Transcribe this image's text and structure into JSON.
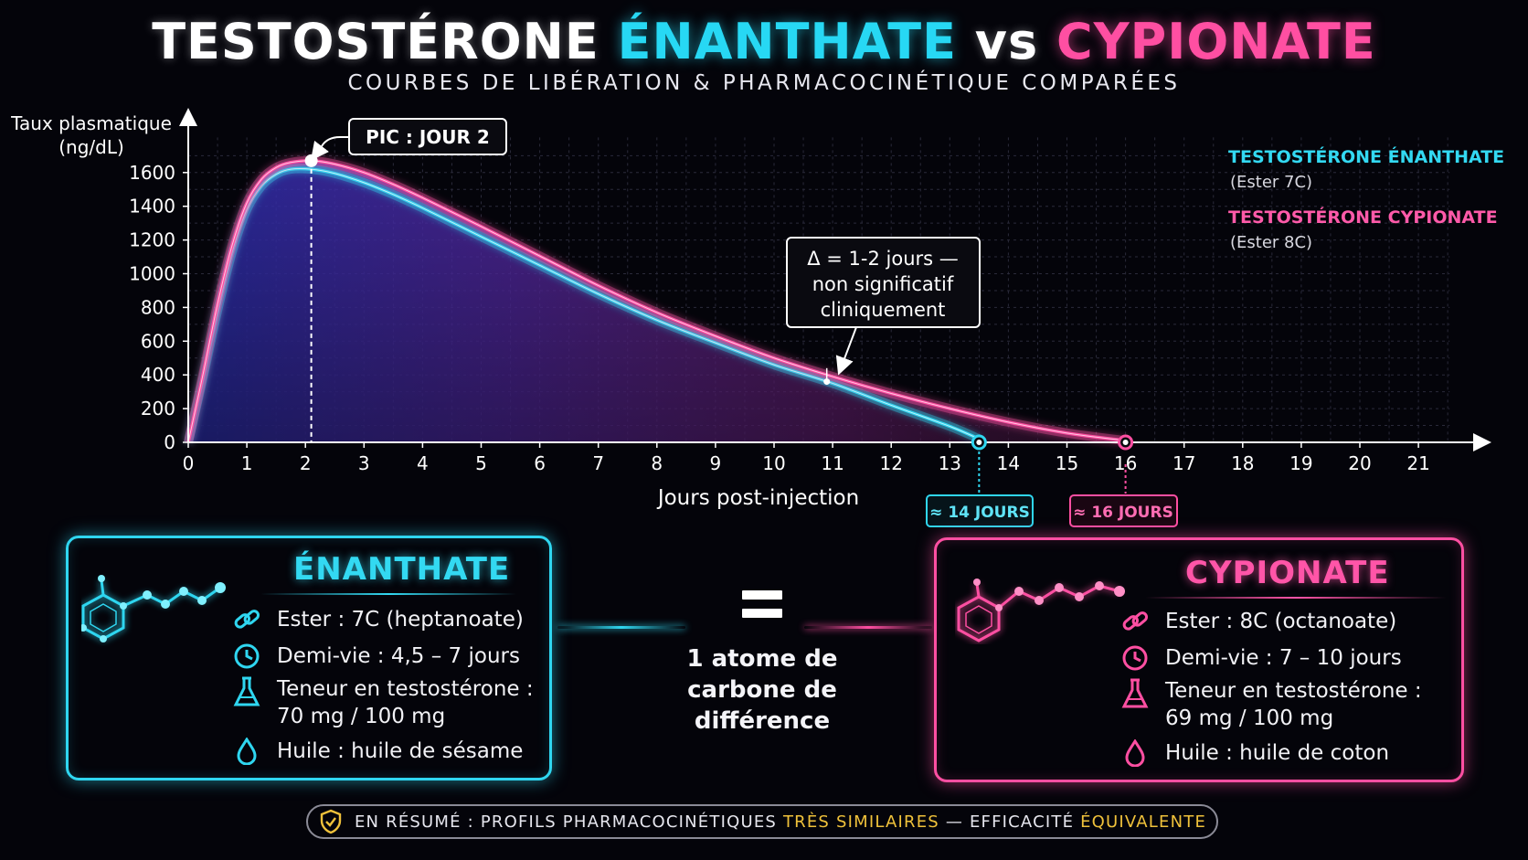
{
  "header": {
    "title_part1": "TESTOSTÉRONE",
    "title_part2": "ÉNANTHATE",
    "title_part3": "vs",
    "title_part4": "CYPIONATE",
    "subtitle": "COURBES DE LIBÉRATION & PHARMACOCINÉTIQUE COMPARÉES"
  },
  "colors": {
    "enanthate": "#2fd6f0",
    "cypionate": "#ff4fa2",
    "highlight": "#f0c23b",
    "background": "#04040a"
  },
  "chart_data": {
    "type": "line",
    "ylabel": [
      "Taux plasmatique",
      "(ng/dL)"
    ],
    "xlabel": "Jours post-injection",
    "xlim": [
      0,
      22
    ],
    "ylim": [
      0,
      1700
    ],
    "xticks": [
      0,
      1,
      2,
      3,
      4,
      5,
      6,
      7,
      8,
      9,
      10,
      11,
      12,
      13,
      14,
      15,
      16,
      17,
      18,
      19,
      20,
      21
    ],
    "yticks": [
      0,
      200,
      400,
      600,
      800,
      1000,
      1200,
      1400,
      1600
    ],
    "grid": true,
    "legend_position": "top-right",
    "series": [
      {
        "name": "TESTOSTÉRONE ÉNANTHATE",
        "sublabel": "(Ester 7C)",
        "color": "#2fd6f0",
        "points": [
          [
            0,
            0
          ],
          [
            0.25,
            380
          ],
          [
            0.5,
            780
          ],
          [
            0.75,
            1130
          ],
          [
            1,
            1380
          ],
          [
            1.25,
            1520
          ],
          [
            1.5,
            1590
          ],
          [
            1.75,
            1620
          ],
          [
            2.1,
            1620
          ],
          [
            2.5,
            1595
          ],
          [
            3,
            1540
          ],
          [
            3.5,
            1470
          ],
          [
            4,
            1390
          ],
          [
            5,
            1220
          ],
          [
            6,
            1050
          ],
          [
            7,
            880
          ],
          [
            8,
            725
          ],
          [
            9,
            590
          ],
          [
            10,
            460
          ],
          [
            11,
            350
          ],
          [
            12,
            220
          ],
          [
            13,
            95
          ],
          [
            13.5,
            20
          ]
        ]
      },
      {
        "name": "TESTOSTÉRONE CYPIONATE",
        "sublabel": "(Ester 8C)",
        "color": "#ff4fa2",
        "points": [
          [
            0,
            0
          ],
          [
            0.25,
            400
          ],
          [
            0.5,
            820
          ],
          [
            0.75,
            1170
          ],
          [
            1,
            1420
          ],
          [
            1.25,
            1560
          ],
          [
            1.5,
            1630
          ],
          [
            1.75,
            1660
          ],
          [
            2.1,
            1670
          ],
          [
            2.5,
            1650
          ],
          [
            3,
            1600
          ],
          [
            3.5,
            1530
          ],
          [
            4,
            1450
          ],
          [
            5,
            1280
          ],
          [
            6,
            1105
          ],
          [
            7,
            930
          ],
          [
            8,
            770
          ],
          [
            9,
            630
          ],
          [
            10,
            500
          ],
          [
            11,
            390
          ],
          [
            12,
            290
          ],
          [
            13,
            200
          ],
          [
            14,
            120
          ],
          [
            15,
            55
          ],
          [
            16,
            10
          ]
        ]
      }
    ],
    "annotations": {
      "peak_label": "PIC : JOUR 2",
      "peak_day": 2.1,
      "peak_value": 1670,
      "delta_lines": [
        "Δ = 1-2 jours —",
        "non significatif",
        "cliniquement"
      ],
      "delta_day": 10.9,
      "end_enanthate_day": 13.5,
      "end_enanthate_label": "≈ 14 JOURS",
      "end_cypionate_day": 16,
      "end_cypionate_label": "≈ 16 JOURS"
    }
  },
  "enanthate_panel": {
    "title": "ÉNANTHATE",
    "ester": "Ester : 7C (heptanoate)",
    "half_life": "Demi-vie : 4,5 – 7 jours",
    "content_line1": "Teneur en testostérone :",
    "content_line2": "70 mg / 100 mg",
    "oil": "Huile : huile de sésame",
    "icons": [
      "link-icon",
      "clock-icon",
      "flask-icon",
      "drop-icon"
    ]
  },
  "cypionate_panel": {
    "title": "CYPIONATE",
    "ester": "Ester : 8C (octanoate)",
    "half_life": "Demi-vie : 7 – 10 jours",
    "content_line1": "Teneur en testostérone :",
    "content_line2": "69 mg / 100 mg",
    "oil": "Huile : huile de coton",
    "icons": [
      "link-icon",
      "clock-icon",
      "flask-icon",
      "drop-icon"
    ]
  },
  "comparison": {
    "equals_symbol": "=",
    "line1": "1 atome de",
    "line2": "carbone de",
    "line3": "différence"
  },
  "summary": {
    "prefix": "EN RÉSUMÉ : PROFILS PHARMACOCINÉTIQUES",
    "highlight1": "TRÈS SIMILAIRES",
    "middle": "— EFFICACITÉ",
    "highlight2": "ÉQUIVALENTE",
    "icon": "shield-check-icon"
  }
}
